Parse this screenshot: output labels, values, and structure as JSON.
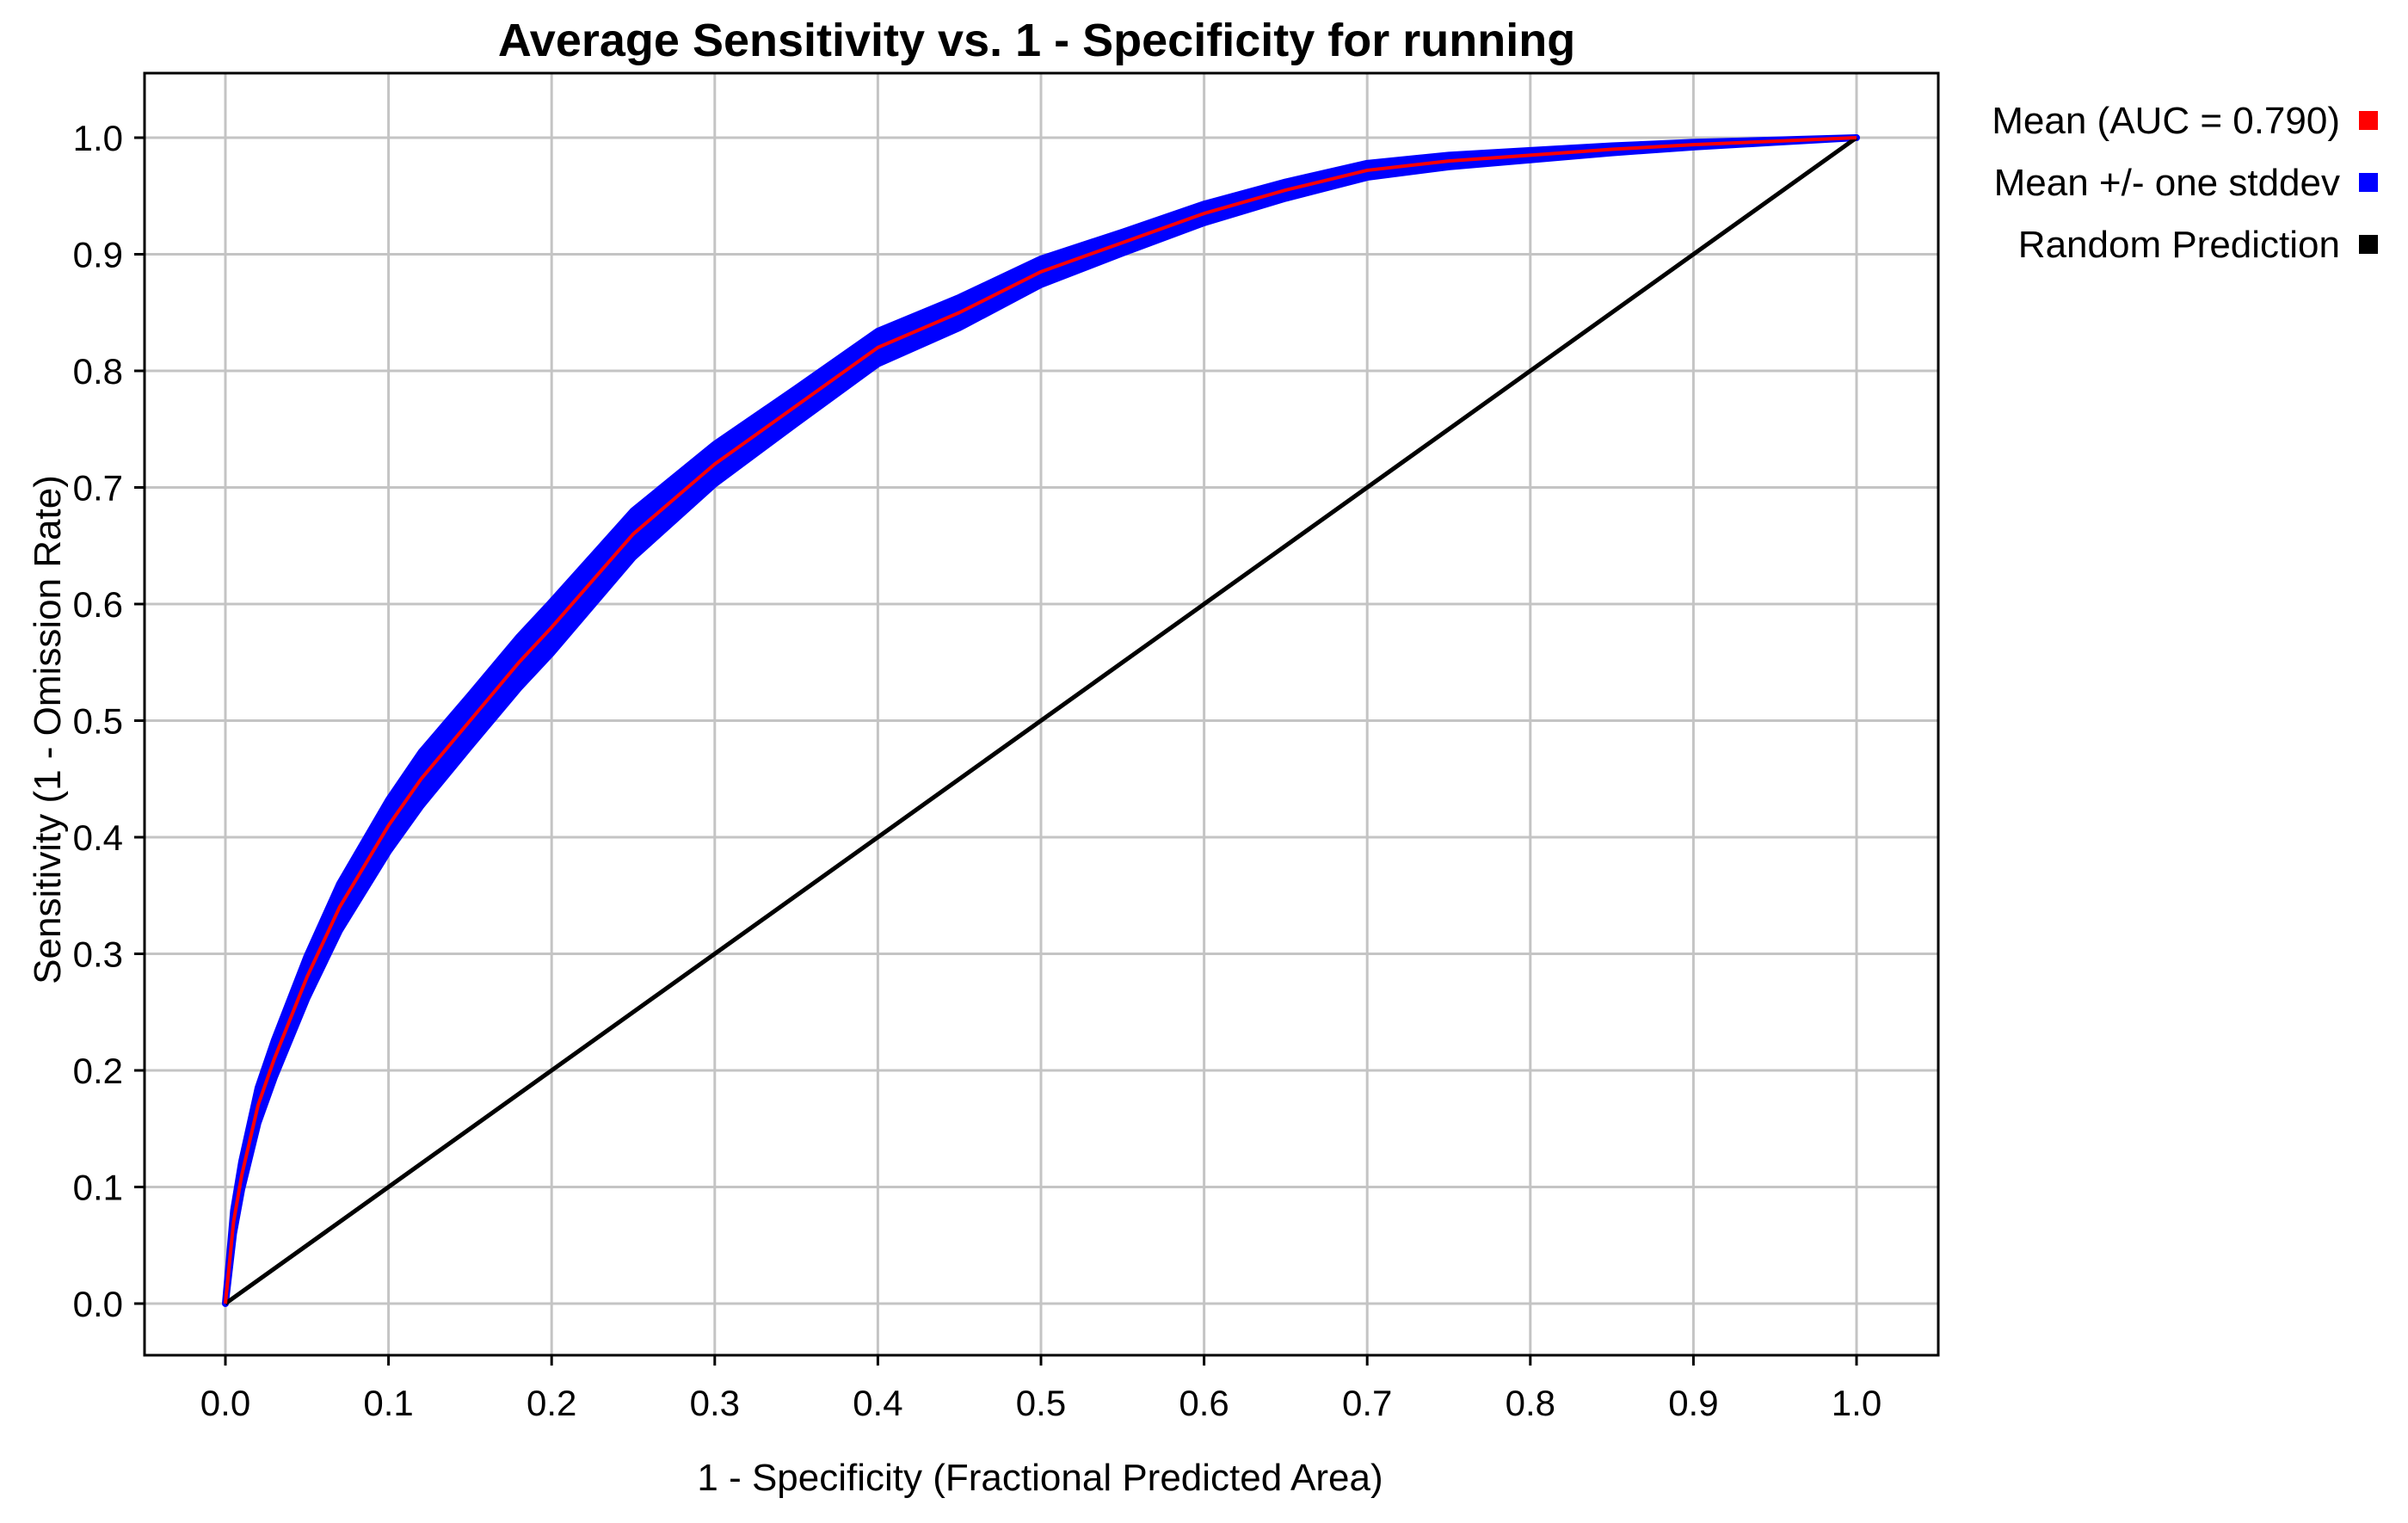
{
  "chart_data": {
    "type": "line",
    "title": "Average Sensitivity vs. 1 - Specificity for running",
    "xlabel": "1 - Specificity (Fractional Predicted Area)",
    "ylabel": "Sensitivity (1 - Omission Rate)",
    "xlim": [
      0.0,
      1.0
    ],
    "ylim": [
      0.0,
      1.0
    ],
    "x_ticks": [
      "0.0",
      "0.1",
      "0.2",
      "0.3",
      "0.4",
      "0.5",
      "0.6",
      "0.7",
      "0.8",
      "0.9",
      "1.0"
    ],
    "y_ticks": [
      "0.0",
      "0.1",
      "0.2",
      "0.3",
      "0.4",
      "0.5",
      "0.6",
      "0.7",
      "0.8",
      "0.9",
      "1.0"
    ],
    "grid": true,
    "legend_position": "right",
    "series": [
      {
        "name": "Mean (AUC = 0.790)",
        "color": "#ff0000",
        "x": [
          0.0,
          0.005,
          0.01,
          0.02,
          0.03,
          0.05,
          0.07,
          0.1,
          0.12,
          0.15,
          0.18,
          0.2,
          0.25,
          0.3,
          0.35,
          0.4,
          0.45,
          0.5,
          0.55,
          0.6,
          0.65,
          0.7,
          0.75,
          0.8,
          0.85,
          0.9,
          0.95,
          1.0
        ],
        "y": [
          0.0,
          0.07,
          0.11,
          0.17,
          0.21,
          0.28,
          0.34,
          0.41,
          0.45,
          0.5,
          0.55,
          0.58,
          0.66,
          0.72,
          0.77,
          0.82,
          0.85,
          0.885,
          0.91,
          0.935,
          0.955,
          0.972,
          0.98,
          0.985,
          0.99,
          0.994,
          0.997,
          1.0
        ]
      },
      {
        "name": "Mean +/- one stddev",
        "color": "#0000ff",
        "stddev": [
          0.0,
          0.01,
          0.012,
          0.015,
          0.016,
          0.018,
          0.02,
          0.022,
          0.023,
          0.022,
          0.022,
          0.022,
          0.02,
          0.017,
          0.015,
          0.014,
          0.013,
          0.011,
          0.009,
          0.008,
          0.007,
          0.006,
          0.005,
          0.004,
          0.003,
          0.002,
          0.001,
          0.0
        ]
      },
      {
        "name": "Random Prediction",
        "color": "#000000",
        "x": [
          0.0,
          1.0
        ],
        "y": [
          0.0,
          1.0
        ]
      }
    ]
  }
}
